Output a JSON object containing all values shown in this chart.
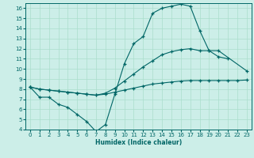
{
  "xlabel": "Humidex (Indice chaleur)",
  "bg_color": "#cceee8",
  "line_color": "#006666",
  "grid_color": "#aaddcc",
  "xlim": [
    -0.5,
    23.5
  ],
  "ylim": [
    4,
    16.5
  ],
  "xticks": [
    0,
    1,
    2,
    3,
    4,
    5,
    6,
    7,
    8,
    9,
    10,
    11,
    12,
    13,
    14,
    15,
    16,
    17,
    18,
    19,
    20,
    21,
    22,
    23
  ],
  "yticks": [
    4,
    5,
    6,
    7,
    8,
    9,
    10,
    11,
    12,
    13,
    14,
    15,
    16
  ],
  "line1_y": [
    8.2,
    7.2,
    7.2,
    6.5,
    6.2,
    5.5,
    4.8,
    3.8,
    4.5,
    7.5,
    10.5,
    12.5,
    13.2,
    15.5,
    16.0,
    16.2,
    16.4,
    16.2,
    13.8,
    11.8,
    11.2,
    11.0,
    null,
    null
  ],
  "line2_y": [
    8.2,
    8.0,
    7.9,
    7.8,
    7.7,
    7.6,
    7.5,
    7.4,
    7.6,
    8.1,
    8.8,
    9.5,
    10.2,
    10.8,
    11.4,
    11.7,
    11.9,
    12.0,
    11.8,
    11.8,
    11.8,
    null,
    null,
    9.8
  ],
  "line3_y": [
    8.2,
    8.0,
    7.9,
    7.8,
    7.7,
    7.6,
    7.5,
    7.4,
    7.5,
    7.7,
    7.9,
    8.1,
    8.3,
    8.5,
    8.6,
    8.7,
    8.8,
    8.85,
    8.85,
    8.85,
    8.85,
    8.85,
    8.85,
    8.9
  ]
}
